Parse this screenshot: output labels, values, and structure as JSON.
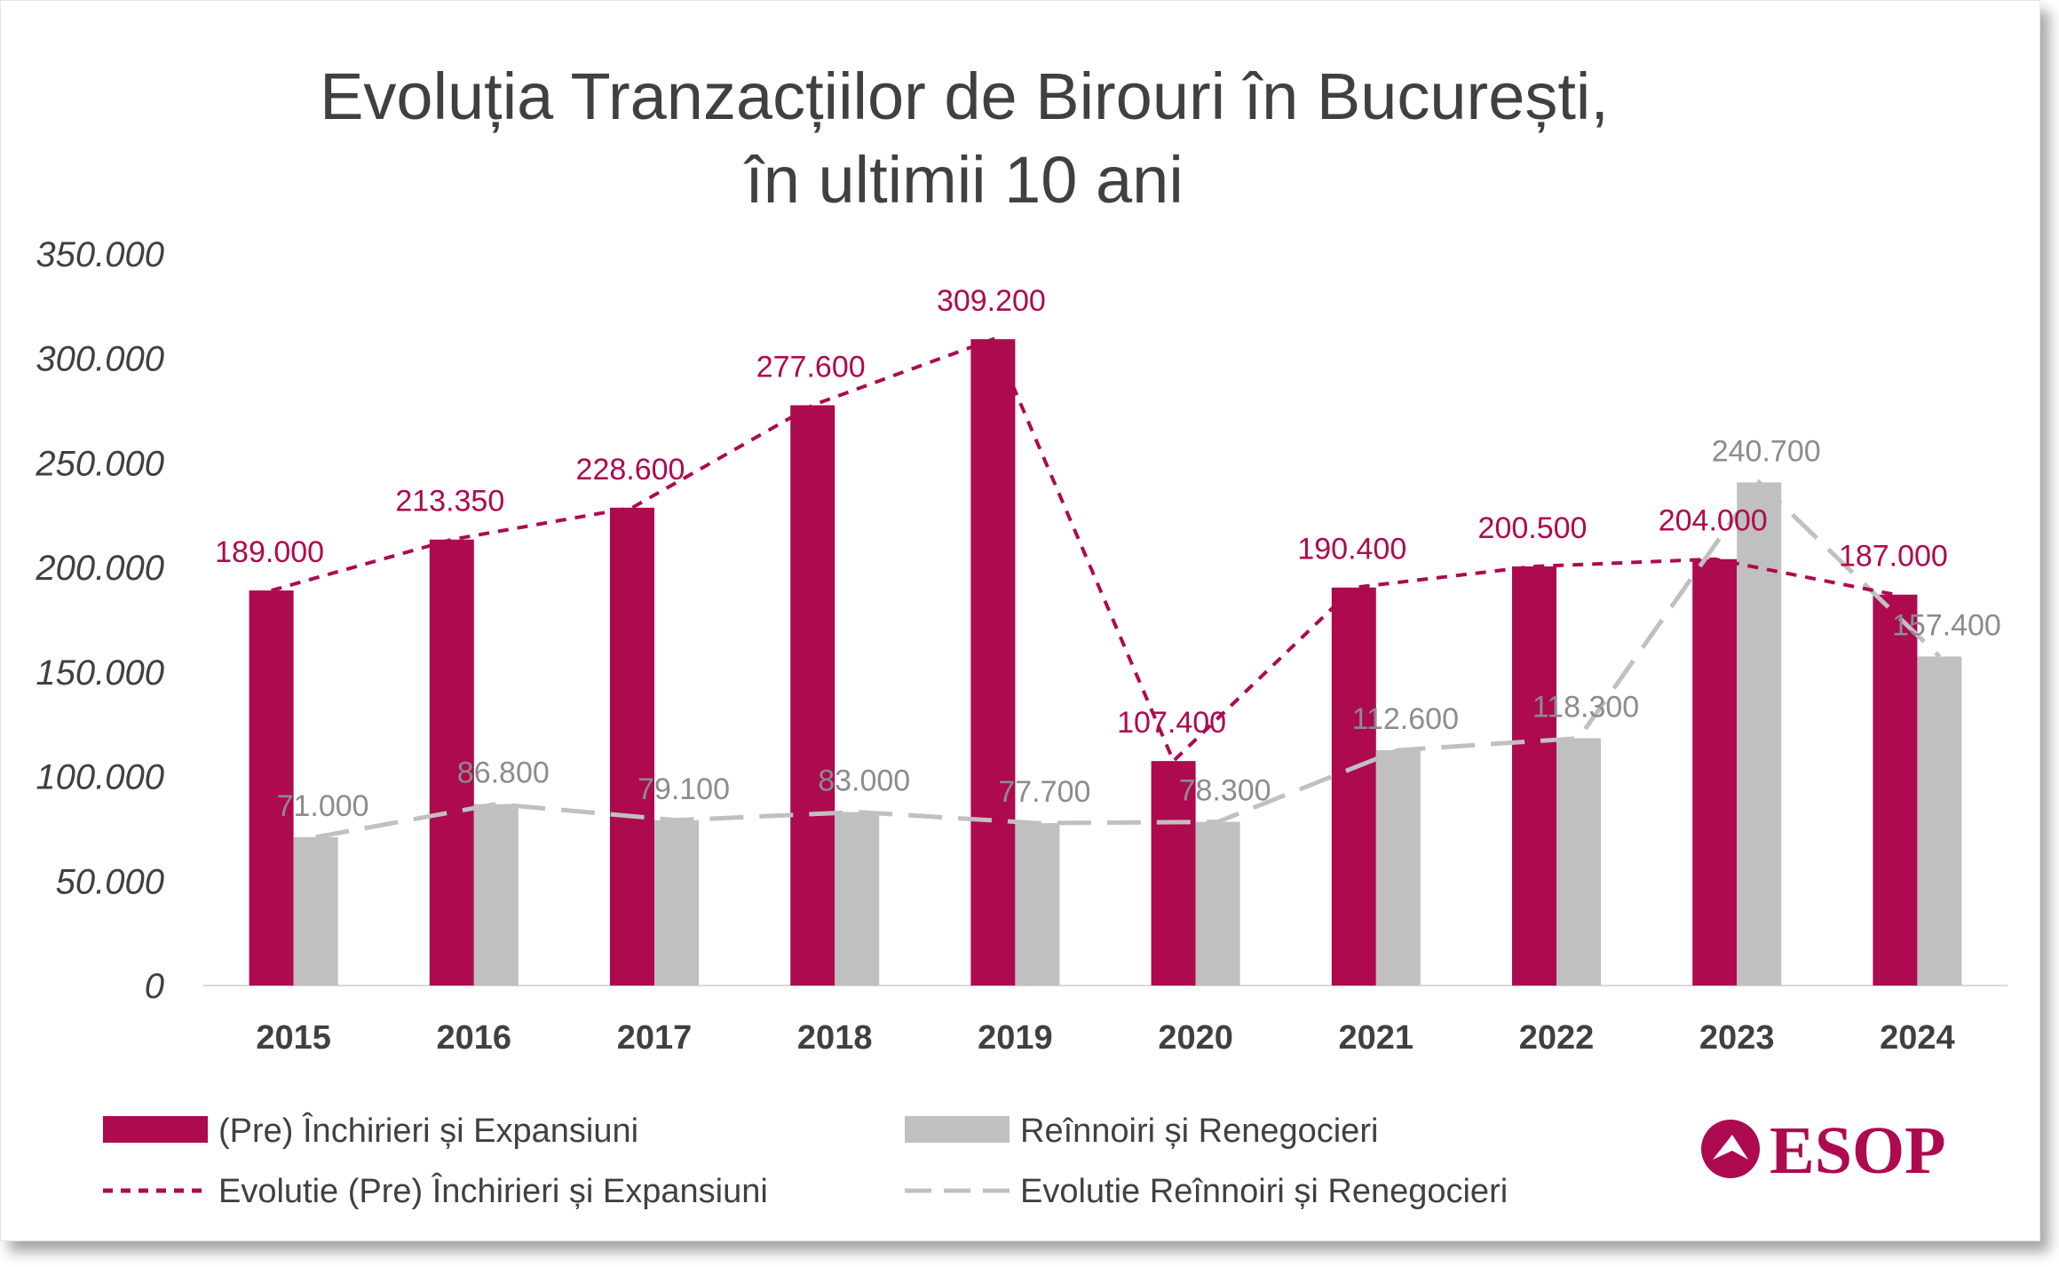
{
  "chart_data": {
    "type": "bar",
    "title_lines": [
      "Evoluția Tranzacțiilor de Birouri în București,",
      "în ultimii 10 ani"
    ],
    "categories": [
      "2015",
      "2016",
      "2017",
      "2018",
      "2019",
      "2020",
      "2021",
      "2022",
      "2023",
      "2024"
    ],
    "series": [
      {
        "name": "(Pre) Închirieri și Expansiuni",
        "kind": "bar",
        "color": "#AD0A50",
        "values": [
          189000,
          213350,
          228600,
          277600,
          309200,
          107400,
          190400,
          200500,
          204000,
          187000
        ],
        "labels": [
          "189.000",
          "213.350",
          "228.600",
          "277.600",
          "309.200",
          "107.400",
          "190.400",
          "200.500",
          "204.000",
          "187.000"
        ]
      },
      {
        "name": "Reînnoiri și  Renegocieri",
        "kind": "bar",
        "color": "#C0C0C0",
        "values": [
          71000,
          86800,
          79100,
          83000,
          77700,
          78300,
          112600,
          118300,
          240700,
          157400
        ],
        "labels": [
          "71.000",
          "86.800",
          "79.100",
          "83.000",
          "77.700",
          "78.300",
          "112.600",
          "118.300",
          "240.700",
          "157.400"
        ]
      },
      {
        "name": "Evolutie (Pre) Închirieri și Expansiuni",
        "kind": "line",
        "style": "dashed",
        "color": "#AD0A50",
        "values": [
          189000,
          213350,
          228600,
          277600,
          309200,
          107400,
          190400,
          200500,
          204000,
          187000
        ]
      },
      {
        "name": "Evolutie Reînnoiri și  Renegocieri",
        "kind": "line",
        "style": "long-dashed",
        "color": "#C0C0C0",
        "values": [
          71000,
          86800,
          79100,
          83000,
          77700,
          78300,
          112600,
          118300,
          240700,
          157400
        ]
      }
    ],
    "y_ticks": [
      "0",
      "50.000",
      "100.000",
      "150.000",
      "200.000",
      "250.000",
      "300.000",
      "350.000"
    ],
    "ylim": [
      0,
      350000
    ],
    "grid": false,
    "legend_position": "bottom"
  },
  "logo": {
    "text": "ESOP",
    "color": "#AD0A50"
  }
}
